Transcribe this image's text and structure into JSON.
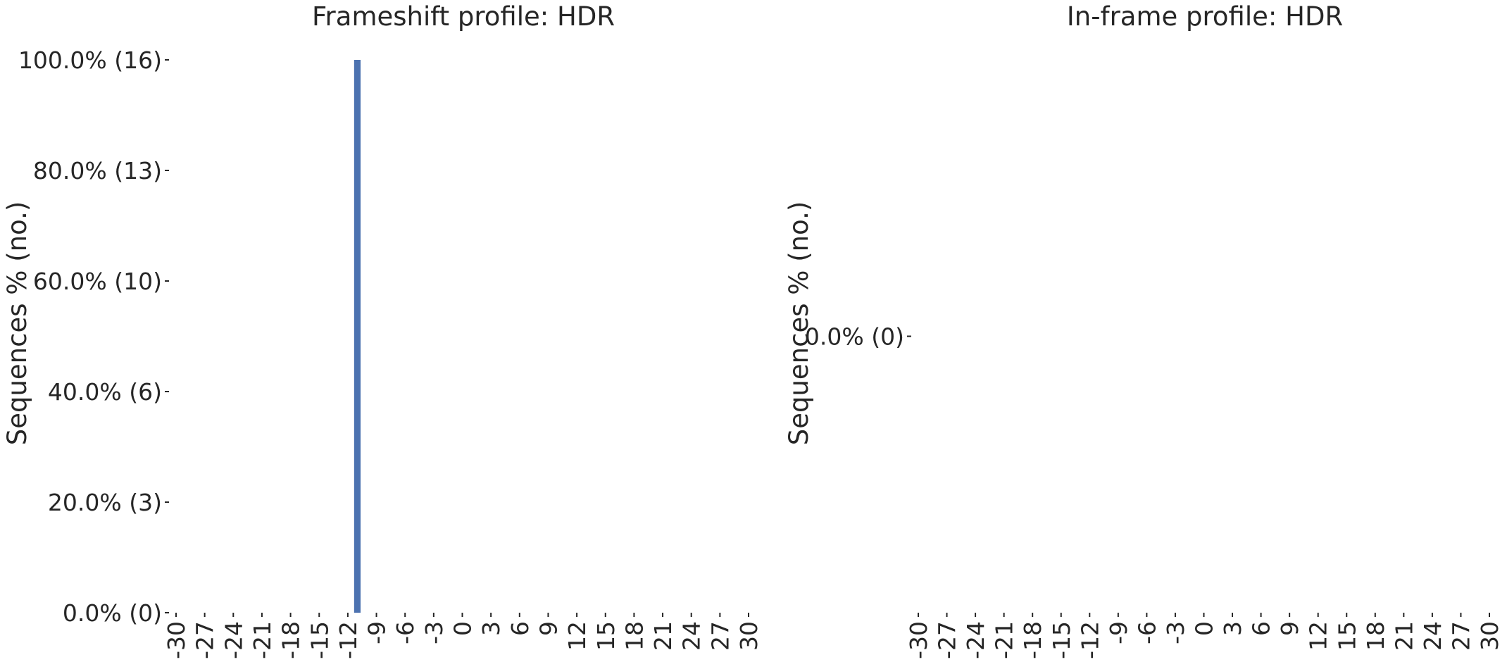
{
  "chart_data": [
    {
      "type": "bar",
      "title": "Frameshift profile: HDR",
      "xlabel": "",
      "ylabel": "Sequences % (no.)",
      "x_ticks": [
        "-30",
        "-27",
        "-24",
        "-21",
        "-18",
        "-15",
        "-12",
        "-9",
        "-6",
        "-3",
        "0",
        "3",
        "6",
        "9",
        "12",
        "15",
        "18",
        "21",
        "24",
        "27",
        "30"
      ],
      "x_range": [
        -30,
        30
      ],
      "y_ticks": [
        "0.0% (0)",
        "20.0% (3)",
        "40.0% (6)",
        "60.0% (10)",
        "80.0% (13)",
        "100.0% (16)"
      ],
      "y_tick_values": [
        0,
        20,
        40,
        60,
        80,
        100
      ],
      "ylim": [
        0,
        100
      ],
      "bars": [
        {
          "x": -11,
          "value": 100,
          "count": 16
        }
      ],
      "grid": false,
      "bar_color": "#4c72b0"
    },
    {
      "type": "bar",
      "title": "In-frame profile: HDR",
      "xlabel": "",
      "ylabel": "Sequences % (no.)",
      "x_ticks": [
        "-30",
        "-27",
        "-24",
        "-21",
        "-18",
        "-15",
        "-12",
        "-9",
        "-6",
        "-3",
        "0",
        "3",
        "6",
        "9",
        "12",
        "15",
        "18",
        "21",
        "24",
        "27",
        "30"
      ],
      "x_range": [
        -30,
        30
      ],
      "y_ticks": [
        "0.0% (0)"
      ],
      "y_tick_values": [
        0
      ],
      "ylim": [
        -0.5,
        0.5
      ],
      "bars": [],
      "grid": false,
      "bar_color": "#4c72b0"
    }
  ]
}
